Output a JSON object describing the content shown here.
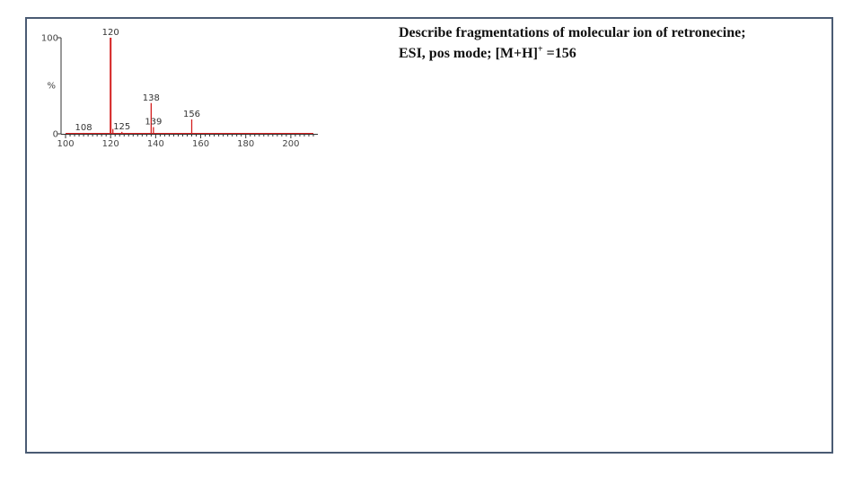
{
  "prompt": {
    "line1": "Describe fragmentations of molecular ion of retronecine;",
    "line2_pre": "ESI, pos mode; [M+H]",
    "line2_sup": "+",
    "line2_post": " =156"
  },
  "chart_data": {
    "type": "bar",
    "title": "",
    "xlabel": "",
    "ylabel": "%",
    "xlim": [
      98,
      212
    ],
    "ylim": [
      0,
      100
    ],
    "x_ticks": [
      "100",
      "120",
      "140",
      "160",
      "180",
      "200"
    ],
    "x_tick_values": [
      100,
      120,
      140,
      160,
      180,
      200
    ],
    "y_ticks": [
      "100",
      "0"
    ],
    "y_tick_values": [
      100,
      0
    ],
    "peaks": [
      {
        "mz": 120,
        "intensity": 100,
        "label": "120"
      },
      {
        "mz": 138,
        "intensity": 32,
        "label": "138"
      },
      {
        "mz": 156,
        "intensity": 15,
        "label": "156"
      },
      {
        "mz": 139,
        "intensity": 7,
        "label": "139"
      },
      {
        "mz": 125,
        "intensity": 2,
        "label": "125"
      },
      {
        "mz": 108,
        "intensity": 1,
        "label": "108"
      },
      {
        "mz": 121,
        "intensity": 5,
        "label": ""
      }
    ],
    "color": "#d42020",
    "grid": false,
    "legend": "none"
  }
}
